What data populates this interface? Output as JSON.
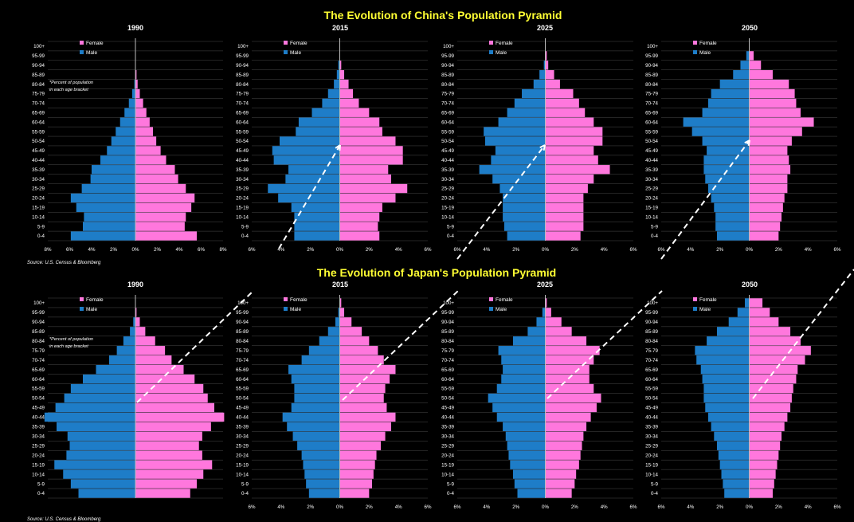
{
  "colors": {
    "background": "#000000",
    "title": "#ffff33",
    "text": "#ffffff",
    "female": "#ff77dd",
    "male": "#1e7dc8",
    "grid": "#4a4a4a",
    "arrow": "#ffffff"
  },
  "sections": [
    {
      "title": "The Evolution of China's Population Pyramid",
      "source": "Source: U.S. Census & Bloomberg",
      "note": [
        "*Percent of population",
        "in each age bracket"
      ]
    },
    {
      "title": "The Evolution of Japan's Population Pyramid",
      "source": "Source: U.S. Census & Bloomberg",
      "note": [
        "*Percent of population",
        "in each age bracket"
      ]
    }
  ],
  "chart_data": [
    {
      "type": "bar",
      "orientation": "horizontal-pyramid",
      "country": "China",
      "title": "1990",
      "categories": [
        "0-4",
        "5-9",
        "10-14",
        "15-19",
        "20-24",
        "25-29",
        "30-34",
        "35-39",
        "40-44",
        "45-49",
        "50-54",
        "55-59",
        "60-64",
        "65-69",
        "70-74",
        "75-79",
        "80-84",
        "85-89",
        "90-94",
        "95-99",
        "100+"
      ],
      "series": [
        {
          "name": "Female",
          "values": [
            5.6,
            4.5,
            4.6,
            5.1,
            5.4,
            4.6,
            3.9,
            3.6,
            2.8,
            2.3,
            1.9,
            1.6,
            1.3,
            1.0,
            0.7,
            0.4,
            0.2,
            0.1,
            0.0,
            0.0,
            0.0
          ]
        },
        {
          "name": "Male",
          "values": [
            5.9,
            4.8,
            4.7,
            5.4,
            5.9,
            4.9,
            4.1,
            4.0,
            3.2,
            2.6,
            2.2,
            1.8,
            1.4,
            1.0,
            0.6,
            0.3,
            0.1,
            0.0,
            0.0,
            0.0,
            0.0
          ]
        }
      ],
      "x_ticks": [
        "8%",
        "6%",
        "4%",
        "2%",
        "0%",
        "2%",
        "4%",
        "6%",
        "8%"
      ],
      "xlim": [
        -8,
        8
      ],
      "legend": [
        "Female",
        "Male"
      ],
      "legend_position": "top",
      "grid": true
    },
    {
      "type": "bar",
      "orientation": "horizontal-pyramid",
      "country": "China",
      "title": "2015",
      "categories": [
        "0-4",
        "5-9",
        "10-14",
        "15-19",
        "20-24",
        "25-29",
        "30-34",
        "35-39",
        "40-44",
        "45-49",
        "50-54",
        "55-59",
        "60-64",
        "65-69",
        "70-74",
        "75-79",
        "80-84",
        "85-89",
        "90-94",
        "95-99",
        "100+"
      ],
      "series": [
        {
          "name": "Female",
          "values": [
            2.7,
            2.6,
            2.7,
            2.9,
            3.8,
            4.6,
            3.5,
            3.3,
            4.3,
            4.3,
            3.8,
            2.9,
            2.7,
            2.0,
            1.3,
            0.9,
            0.6,
            0.3,
            0.1,
            0.0,
            0.0
          ]
        },
        {
          "name": "Male",
          "values": [
            3.1,
            3.1,
            3.1,
            3.3,
            4.2,
            4.9,
            3.7,
            3.5,
            4.5,
            4.6,
            4.1,
            3.0,
            2.8,
            1.9,
            1.2,
            0.8,
            0.4,
            0.2,
            0.1,
            0.0,
            0.0
          ]
        }
      ],
      "x_ticks": [
        "6%",
        "4%",
        "2%",
        "0%",
        "2%",
        "4%",
        "6%"
      ],
      "xlim": [
        -6,
        6
      ],
      "legend": [
        "Female",
        "Male"
      ],
      "legend_position": "top",
      "grid": true
    },
    {
      "type": "bar",
      "orientation": "horizontal-pyramid",
      "country": "China",
      "title": "2025",
      "categories": [
        "0-4",
        "5-9",
        "10-14",
        "15-19",
        "20-24",
        "25-29",
        "30-34",
        "35-39",
        "40-44",
        "45-49",
        "50-54",
        "55-59",
        "60-64",
        "65-69",
        "70-74",
        "75-79",
        "80-84",
        "85-89",
        "90-94",
        "95-99",
        "100+"
      ],
      "series": [
        {
          "name": "Female",
          "values": [
            2.4,
            2.6,
            2.6,
            2.6,
            2.6,
            2.9,
            3.3,
            4.4,
            3.6,
            3.3,
            3.9,
            3.9,
            3.3,
            2.7,
            2.3,
            1.9,
            1.0,
            0.6,
            0.2,
            0.1,
            0.0
          ]
        },
        {
          "name": "Male",
          "values": [
            2.6,
            2.8,
            2.9,
            2.9,
            2.9,
            3.1,
            3.6,
            4.5,
            3.7,
            3.4,
            4.1,
            4.2,
            3.2,
            2.6,
            2.1,
            1.6,
            0.8,
            0.4,
            0.1,
            0.0,
            0.0
          ]
        }
      ],
      "x_ticks": [
        "6%",
        "4%",
        "2%",
        "0%",
        "2%",
        "4%",
        "6%"
      ],
      "xlim": [
        -6,
        6
      ],
      "legend": [
        "Female",
        "Male"
      ],
      "legend_position": "top",
      "grid": true
    },
    {
      "type": "bar",
      "orientation": "horizontal-pyramid",
      "country": "China",
      "title": "2050",
      "categories": [
        "0-4",
        "5-9",
        "10-14",
        "15-19",
        "20-24",
        "25-29",
        "30-34",
        "35-39",
        "40-44",
        "45-49",
        "50-54",
        "55-59",
        "60-64",
        "65-69",
        "70-74",
        "75-79",
        "80-84",
        "85-89",
        "90-94",
        "95-99",
        "100+"
      ],
      "series": [
        {
          "name": "Female",
          "values": [
            2.0,
            2.1,
            2.2,
            2.3,
            2.4,
            2.6,
            2.6,
            2.8,
            2.7,
            2.6,
            2.9,
            3.6,
            4.4,
            3.5,
            3.2,
            3.1,
            2.7,
            1.6,
            0.8,
            0.3,
            0.0
          ]
        },
        {
          "name": "Male",
          "values": [
            2.2,
            2.3,
            2.3,
            2.4,
            2.6,
            2.8,
            3.0,
            3.1,
            3.1,
            2.9,
            3.2,
            3.9,
            4.5,
            3.2,
            2.8,
            2.6,
            2.0,
            1.1,
            0.6,
            0.2,
            0.0
          ]
        }
      ],
      "x_ticks": [
        "6%",
        "4%",
        "2%",
        "0%",
        "2%",
        "4%",
        "6%"
      ],
      "xlim": [
        -6,
        6
      ],
      "legend": [
        "Female",
        "Male"
      ],
      "legend_position": "top",
      "grid": true
    },
    {
      "type": "bar",
      "orientation": "horizontal-pyramid",
      "country": "Japan",
      "title": "1990",
      "categories": [
        "0-4",
        "5-9",
        "10-14",
        "15-19",
        "20-24",
        "25-29",
        "30-34",
        "35-39",
        "40-44",
        "45-49",
        "50-54",
        "55-59",
        "60-64",
        "65-69",
        "70-74",
        "75-79",
        "80-84",
        "85-89",
        "90-94",
        "95-99",
        "100+"
      ],
      "series": [
        {
          "name": "Female",
          "values": [
            5.0,
            5.6,
            6.2,
            7.0,
            6.1,
            5.8,
            6.1,
            6.9,
            8.1,
            7.2,
            6.6,
            6.2,
            5.4,
            4.4,
            3.3,
            2.7,
            1.8,
            0.9,
            0.4,
            0.1,
            0.0
          ]
        },
        {
          "name": "Male",
          "values": [
            5.2,
            5.9,
            6.6,
            7.4,
            6.3,
            6.0,
            6.2,
            7.2,
            8.3,
            7.3,
            6.5,
            5.9,
            4.8,
            3.6,
            2.4,
            1.7,
            1.1,
            0.5,
            0.2,
            0.0,
            0.0
          ]
        }
      ],
      "x_ticks": [],
      "xlim": [
        -8,
        8
      ],
      "legend": [
        "Female",
        "Male"
      ],
      "legend_position": "top",
      "grid": true
    },
    {
      "type": "bar",
      "orientation": "horizontal-pyramid",
      "country": "Japan",
      "title": "2015",
      "categories": [
        "0-4",
        "5-9",
        "10-14",
        "15-19",
        "20-24",
        "25-29",
        "30-34",
        "35-39",
        "40-44",
        "45-49",
        "50-54",
        "55-59",
        "60-64",
        "65-69",
        "70-74",
        "75-79",
        "80-84",
        "85-89",
        "90-94",
        "95-99",
        "100+"
      ],
      "series": [
        {
          "name": "Female",
          "values": [
            2.0,
            2.2,
            2.3,
            2.4,
            2.5,
            2.8,
            3.1,
            3.5,
            3.8,
            3.2,
            3.0,
            3.1,
            3.4,
            3.8,
            3.0,
            2.6,
            2.0,
            1.5,
            0.8,
            0.3,
            0.1
          ]
        },
        {
          "name": "Male",
          "values": [
            2.1,
            2.3,
            2.4,
            2.5,
            2.6,
            2.9,
            3.2,
            3.6,
            3.9,
            3.3,
            3.1,
            3.1,
            3.3,
            3.5,
            2.6,
            2.1,
            1.4,
            0.8,
            0.3,
            0.1,
            0.0
          ]
        }
      ],
      "x_ticks": [
        "6%",
        "4%",
        "2%",
        "0%",
        "2%",
        "4%",
        "6%"
      ],
      "xlim": [
        -6,
        6
      ],
      "legend": [
        "Female",
        "Male"
      ],
      "legend_position": "top",
      "grid": true
    },
    {
      "type": "bar",
      "orientation": "horizontal-pyramid",
      "country": "Japan",
      "title": "2025",
      "categories": [
        "0-4",
        "5-9",
        "10-14",
        "15-19",
        "20-24",
        "25-29",
        "30-34",
        "35-39",
        "40-44",
        "45-49",
        "50-54",
        "55-59",
        "60-64",
        "65-69",
        "70-74",
        "75-79",
        "80-84",
        "85-89",
        "90-94",
        "95-99",
        "100+"
      ],
      "series": [
        {
          "name": "Female",
          "values": [
            1.8,
            2.0,
            2.1,
            2.3,
            2.4,
            2.5,
            2.6,
            2.8,
            3.1,
            3.5,
            3.8,
            3.3,
            3.0,
            3.0,
            3.3,
            3.7,
            2.8,
            1.8,
            1.1,
            0.4,
            0.1
          ]
        },
        {
          "name": "Male",
          "values": [
            1.9,
            2.1,
            2.2,
            2.4,
            2.5,
            2.6,
            2.7,
            2.9,
            3.3,
            3.6,
            3.9,
            3.3,
            3.0,
            2.9,
            3.0,
            3.2,
            2.2,
            1.2,
            0.6,
            0.2,
            0.0
          ]
        }
      ],
      "x_ticks": [
        "6%",
        "4%",
        "2%",
        "0%",
        "2%",
        "4%",
        "6%"
      ],
      "xlim": [
        -6,
        6
      ],
      "legend": [
        "Female",
        "Male"
      ],
      "legend_position": "top",
      "grid": true
    },
    {
      "type": "bar",
      "orientation": "horizontal-pyramid",
      "country": "Japan",
      "title": "2050",
      "categories": [
        "0-4",
        "5-9",
        "10-14",
        "15-19",
        "20-24",
        "25-29",
        "30-34",
        "35-39",
        "40-44",
        "45-49",
        "50-54",
        "55-59",
        "60-64",
        "65-69",
        "70-74",
        "75-79",
        "80-84",
        "85-89",
        "90-94",
        "95-99",
        "100+"
      ],
      "series": [
        {
          "name": "Female",
          "values": [
            1.6,
            1.7,
            1.8,
            1.9,
            2.0,
            2.1,
            2.2,
            2.4,
            2.6,
            2.8,
            2.9,
            3.0,
            3.2,
            3.3,
            3.8,
            4.2,
            3.5,
            2.8,
            2.0,
            1.4,
            0.9
          ]
        },
        {
          "name": "Male",
          "values": [
            1.7,
            1.8,
            1.9,
            2.0,
            2.1,
            2.2,
            2.4,
            2.6,
            2.8,
            3.0,
            3.1,
            3.1,
            3.2,
            3.3,
            3.6,
            3.7,
            2.9,
            2.2,
            1.4,
            0.8,
            0.3
          ]
        }
      ],
      "x_ticks": [
        "6%",
        "4%",
        "2%",
        "0%",
        "2%",
        "4%",
        "6%"
      ],
      "xlim": [
        -6,
        6
      ],
      "legend": [
        "Female",
        "Male"
      ],
      "legend_position": "top",
      "grid": true
    }
  ]
}
